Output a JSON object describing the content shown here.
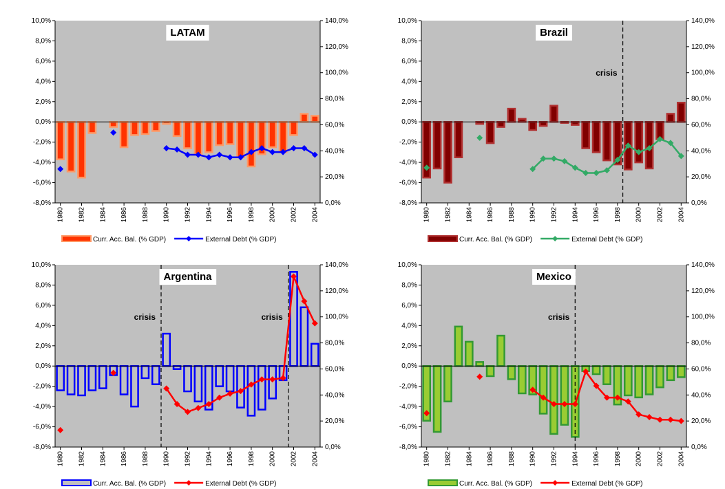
{
  "chart_data": [
    {
      "type": "combo",
      "title": "LATAM",
      "x": [
        1980,
        1981,
        1982,
        1983,
        1984,
        1985,
        1986,
        1987,
        1988,
        1989,
        1990,
        1991,
        1992,
        1993,
        1994,
        1995,
        1996,
        1997,
        1998,
        1999,
        2000,
        2001,
        2002,
        2003,
        2004
      ],
      "xlim": [
        1979.5,
        2004.5
      ],
      "xticks": [
        1980,
        1982,
        1984,
        1986,
        1988,
        1990,
        1992,
        1994,
        1996,
        1998,
        2000,
        2002,
        2004
      ],
      "ylim": [
        -8,
        10
      ],
      "yticks": [
        {
          "value": -8,
          "label": "-8,0%"
        },
        {
          "value": -6,
          "label": "-6,0%"
        },
        {
          "value": -4,
          "label": "-4,0%"
        },
        {
          "value": -2,
          "label": "-2,0%"
        },
        {
          "value": 0,
          "label": "0,0%"
        },
        {
          "value": 2,
          "label": "2,0%"
        },
        {
          "value": 4,
          "label": "4,0%"
        },
        {
          "value": 6,
          "label": "6,0%"
        },
        {
          "value": 8,
          "label": "8,0%"
        },
        {
          "value": 10,
          "label": "10,0%"
        }
      ],
      "y2lim": [
        0,
        140
      ],
      "y2ticks": [
        {
          "value": 0,
          "label": "0,0%"
        },
        {
          "value": 20,
          "label": "20,0%"
        },
        {
          "value": 40,
          "label": "40,0%"
        },
        {
          "value": 60,
          "label": "60,0%"
        },
        {
          "value": 80,
          "label": "80,0%"
        },
        {
          "value": 100,
          "label": "100,0%"
        },
        {
          "value": 120,
          "label": "120,0%"
        },
        {
          "value": 140,
          "label": "140,0%"
        }
      ],
      "series": [
        {
          "name": "Curr. Acc. Bal. (% GDP)",
          "type": "bar",
          "color": "#ff3300",
          "edge_color": "#ff9966",
          "values": [
            -3.7,
            -4.9,
            -5.5,
            -1.1,
            0,
            -0.5,
            -2.5,
            -1.3,
            -1.2,
            -0.9,
            -0.2,
            -1.4,
            -2.6,
            -3.2,
            -3.0,
            -2.3,
            -2.2,
            -3.5,
            -4.4,
            -3.2,
            -2.5,
            -3.0,
            -1.3,
            0.8,
            0.6
          ]
        },
        {
          "name": "External Debt (% GDP)",
          "type": "line",
          "axis": "y2",
          "color": "#0000ff",
          "values": [
            26,
            null,
            null,
            null,
            null,
            54,
            null,
            null,
            null,
            null,
            42,
            41,
            37,
            37,
            35,
            37,
            35,
            35,
            39,
            42,
            39,
            39,
            42,
            42,
            37
          ]
        }
      ],
      "annotations": []
    },
    {
      "type": "combo",
      "title": "Brazil",
      "x": [
        1980,
        1981,
        1982,
        1983,
        1984,
        1985,
        1986,
        1987,
        1988,
        1989,
        1990,
        1991,
        1992,
        1993,
        1994,
        1995,
        1996,
        1997,
        1998,
        1999,
        2000,
        2001,
        2002,
        2003,
        2004
      ],
      "xlim": [
        1979.5,
        2004.5
      ],
      "xticks": [
        1980,
        1982,
        1984,
        1986,
        1988,
        1990,
        1992,
        1994,
        1996,
        1998,
        2000,
        2002,
        2004
      ],
      "ylim": [
        -8,
        10
      ],
      "yticks": [
        {
          "value": -8,
          "label": "-8,0%"
        },
        {
          "value": -6,
          "label": "-6,0%"
        },
        {
          "value": -4,
          "label": "-4,0%"
        },
        {
          "value": -2,
          "label": "-2,0%"
        },
        {
          "value": 0,
          "label": "0,0%"
        },
        {
          "value": 2,
          "label": "2,0%"
        },
        {
          "value": 4,
          "label": "4,0%"
        },
        {
          "value": 6,
          "label": "6,0%"
        },
        {
          "value": 8,
          "label": "8,0%"
        },
        {
          "value": 10,
          "label": "10,0%"
        }
      ],
      "y2lim": [
        0,
        140
      ],
      "y2ticks": [
        {
          "value": 0,
          "label": "0,0%"
        },
        {
          "value": 20,
          "label": "20,0%"
        },
        {
          "value": 40,
          "label": "40,0%"
        },
        {
          "value": 60,
          "label": "60,0%"
        },
        {
          "value": 80,
          "label": "80,0%"
        },
        {
          "value": 100,
          "label": "100,0%"
        },
        {
          "value": 120,
          "label": "120,0%"
        },
        {
          "value": 140,
          "label": "140,0%"
        }
      ],
      "series": [
        {
          "name": "Curr. Acc. Bal. (% GDP)",
          "type": "bar",
          "color": "#800000",
          "edge_color": "#b03030",
          "values": [
            -5.5,
            -4.6,
            -6.0,
            -3.5,
            0,
            -0.2,
            -2.1,
            -0.5,
            1.3,
            0.3,
            -0.8,
            -0.4,
            1.6,
            -0.1,
            -0.3,
            -2.6,
            -3.0,
            -3.8,
            -4.2,
            -4.7,
            -4.0,
            -4.6,
            -1.7,
            0.8,
            1.9
          ]
        },
        {
          "name": "External Debt (% GDP)",
          "type": "line",
          "axis": "y2",
          "color": "#33aa66",
          "values": [
            27,
            null,
            null,
            null,
            null,
            50,
            null,
            null,
            null,
            null,
            26,
            34,
            34,
            32,
            27,
            23,
            23,
            25,
            33,
            44,
            39,
            42,
            49,
            46,
            36
          ]
        }
      ],
      "annotations": [
        {
          "text": "crisis",
          "x": 1998.5
        }
      ]
    },
    {
      "type": "combo",
      "title": "Argentina",
      "x": [
        1980,
        1981,
        1982,
        1983,
        1984,
        1985,
        1986,
        1987,
        1988,
        1989,
        1990,
        1991,
        1992,
        1993,
        1994,
        1995,
        1996,
        1997,
        1998,
        1999,
        2000,
        2001,
        2002,
        2003,
        2004
      ],
      "xlim": [
        1979.5,
        2004.5
      ],
      "xticks": [
        1980,
        1982,
        1984,
        1986,
        1988,
        1990,
        1992,
        1994,
        1996,
        1998,
        2000,
        2002,
        2004
      ],
      "ylim": [
        -8,
        10
      ],
      "yticks": [
        {
          "value": -8,
          "label": "-8,0%"
        },
        {
          "value": -6,
          "label": "-6,0%"
        },
        {
          "value": -4,
          "label": "-4,0%"
        },
        {
          "value": -2,
          "label": "-2,0%"
        },
        {
          "value": 0,
          "label": "0,0%"
        },
        {
          "value": 2,
          "label": "2,0%"
        },
        {
          "value": 4,
          "label": "4,0%"
        },
        {
          "value": 6,
          "label": "6,0%"
        },
        {
          "value": 8,
          "label": "8,0%"
        },
        {
          "value": 10,
          "label": "10,0%"
        }
      ],
      "y2lim": [
        0,
        140
      ],
      "y2ticks": [
        {
          "value": 0,
          "label": "0,0%"
        },
        {
          "value": 20,
          "label": "20,0%"
        },
        {
          "value": 40,
          "label": "40,0%"
        },
        {
          "value": 60,
          "label": "60,0%"
        },
        {
          "value": 80,
          "label": "80,0%"
        },
        {
          "value": 100,
          "label": "100,0%"
        },
        {
          "value": 120,
          "label": "120,0%"
        },
        {
          "value": 140,
          "label": "140,0%"
        }
      ],
      "series": [
        {
          "name": "Curr. Acc. Bal. (% GDP)",
          "type": "bar",
          "color": "#c0c0c0",
          "edge_color": "#0000ff",
          "values": [
            -2.4,
            -2.8,
            -2.9,
            -2.4,
            -2.2,
            -0.9,
            -2.8,
            -4.0,
            -1.2,
            -1.8,
            3.2,
            -0.3,
            -2.5,
            -3.5,
            -4.3,
            -2.0,
            -2.5,
            -4.1,
            -4.9,
            -4.3,
            -3.2,
            -1.4,
            9.3,
            5.8,
            2.2
          ]
        },
        {
          "name": "External Debt (% GDP)",
          "type": "line",
          "axis": "y2",
          "color": "#ff0000",
          "values": [
            13,
            null,
            null,
            null,
            null,
            57,
            null,
            null,
            null,
            null,
            45,
            33,
            27,
            30,
            33,
            38,
            41,
            43,
            48,
            52,
            52,
            53,
            131,
            112,
            95
          ]
        }
      ],
      "annotations": [
        {
          "text": "crisis",
          "x": 1989.5
        },
        {
          "text": "crisis",
          "x": 2001.5
        }
      ]
    },
    {
      "type": "combo",
      "title": "Mexico",
      "x": [
        1980,
        1981,
        1982,
        1983,
        1984,
        1985,
        1986,
        1987,
        1988,
        1989,
        1990,
        1991,
        1992,
        1993,
        1994,
        1995,
        1996,
        1997,
        1998,
        1999,
        2000,
        2001,
        2002,
        2003,
        2004
      ],
      "xlim": [
        1979.5,
        2004.5
      ],
      "xticks": [
        1980,
        1982,
        1984,
        1986,
        1988,
        1990,
        1992,
        1994,
        1996,
        1998,
        2000,
        2002,
        2004
      ],
      "ylim": [
        -8,
        10
      ],
      "yticks": [
        {
          "value": -8,
          "label": "-8,0%"
        },
        {
          "value": -6,
          "label": "-6,0%"
        },
        {
          "value": -4,
          "label": "-4,0%"
        },
        {
          "value": -2,
          "label": "-2,0%"
        },
        {
          "value": 0,
          "label": "0,0%"
        },
        {
          "value": 2,
          "label": "2,0%"
        },
        {
          "value": 4,
          "label": "4,0%"
        },
        {
          "value": 6,
          "label": "6,0%"
        },
        {
          "value": 8,
          "label": "8,0%"
        },
        {
          "value": 10,
          "label": "10,0%"
        }
      ],
      "y2lim": [
        0,
        140
      ],
      "y2ticks": [
        {
          "value": 0,
          "label": "0,0%"
        },
        {
          "value": 20,
          "label": "20,0%"
        },
        {
          "value": 40,
          "label": "40,0%"
        },
        {
          "value": 60,
          "label": "60,0%"
        },
        {
          "value": 80,
          "label": "80,0%"
        },
        {
          "value": 100,
          "label": "100,0%"
        },
        {
          "value": 120,
          "label": "120,0%"
        },
        {
          "value": 140,
          "label": "140,0%"
        }
      ],
      "series": [
        {
          "name": "Curr. Acc. Bal. (% GDP)",
          "type": "bar",
          "color": "#99cc33",
          "edge_color": "#339933",
          "values": [
            -5.4,
            -6.5,
            -3.5,
            3.9,
            2.4,
            0.4,
            -1.0,
            3.0,
            -1.3,
            -2.7,
            -2.8,
            -4.7,
            -6.7,
            -5.8,
            -7.0,
            -0.5,
            -0.8,
            -1.8,
            -3.8,
            -2.9,
            -3.1,
            -2.8,
            -2.1,
            -1.4,
            -1.1
          ]
        },
        {
          "name": "External Debt (% GDP)",
          "type": "line",
          "axis": "y2",
          "color": "#ff0000",
          "values": [
            26,
            null,
            null,
            null,
            null,
            54,
            null,
            null,
            null,
            null,
            44,
            38,
            33,
            33,
            33,
            58,
            47,
            38,
            38,
            35,
            25,
            23,
            21,
            21,
            20
          ]
        }
      ],
      "annotations": [
        {
          "text": "crisis",
          "x": 1994
        }
      ]
    }
  ]
}
